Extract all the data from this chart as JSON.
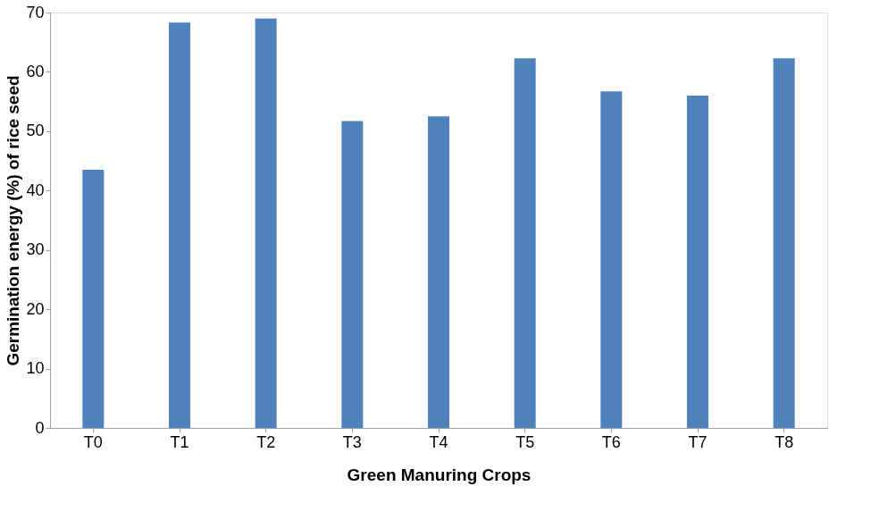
{
  "chart_data": {
    "type": "bar",
    "xlabel": "Green Manuring Crops",
    "ylabel": "Germination energy (%) of rice seed",
    "categories": [
      "T0",
      "T1",
      "T2",
      "T3",
      "T4",
      "T5",
      "T6",
      "T7",
      "T8"
    ],
    "values": [
      43.5,
      68.3,
      69,
      51.7,
      52.5,
      62.3,
      56.7,
      56,
      62.3
    ],
    "color": "#4f81bd",
    "ylim": [
      0,
      70
    ],
    "yticks": [
      0,
      10,
      20,
      30,
      40,
      50,
      60,
      70
    ],
    "grid": false
  }
}
